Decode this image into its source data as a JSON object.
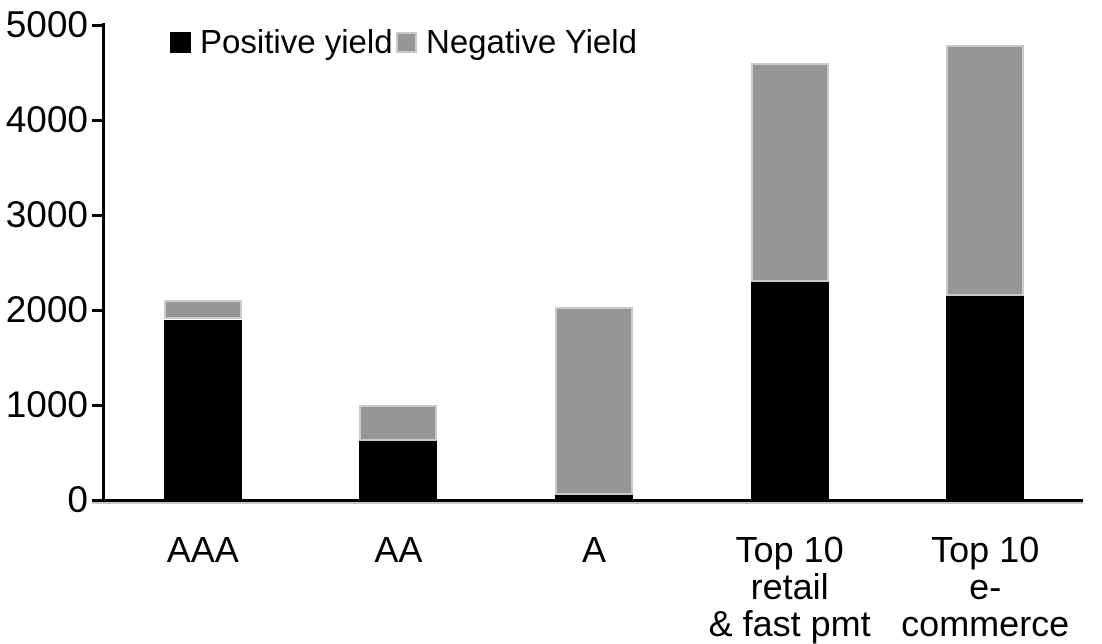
{
  "chart_data": {
    "type": "bar",
    "stacked": true,
    "title": "",
    "xlabel": "",
    "ylabel": "",
    "categories": [
      "AAA",
      "AA",
      "A",
      "Top 10 retail\n& fast pmt",
      "Top 10\ne-commerce"
    ],
    "series": [
      {
        "name": "Positive yield",
        "color": "#000000",
        "border_color": null,
        "values": [
          1900,
          620,
          50,
          2290,
          2150
        ]
      },
      {
        "name": "Negative Yield",
        "color": "#969696",
        "border_color": "#c9c9c9",
        "values": [
          210,
          380,
          1980,
          2310,
          2640
        ]
      }
    ],
    "ylim": [
      0,
      5000
    ],
    "yticks": [
      0,
      1000,
      2000,
      3000,
      4000,
      5000
    ],
    "ytick_labels": [
      "0",
      "1000",
      "2000",
      "3000",
      "4000",
      "5000"
    ],
    "grid": false,
    "legend_position": "top-inside"
  },
  "colors": {
    "background": "#ffffff",
    "axis": "#000000",
    "text": "#000000",
    "positive_yield": "#000000",
    "negative_yield": "#969696"
  }
}
